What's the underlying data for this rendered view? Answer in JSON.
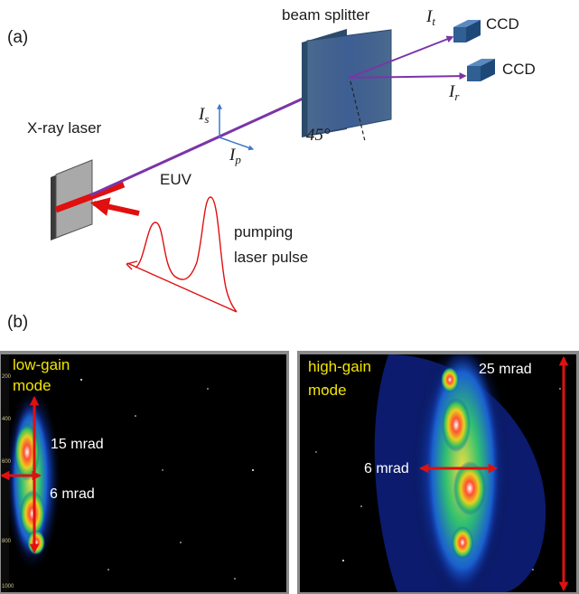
{
  "panel_a": {
    "label": "(a)",
    "beam_splitter": "beam splitter",
    "ccd_transmitted": "CCD",
    "ccd_reflected": "CCD",
    "intensity_t": "I",
    "intensity_t_sub": "t",
    "intensity_r": "I",
    "intensity_r_sub": "r",
    "intensity_s": "I",
    "intensity_s_sub": "s",
    "intensity_p": "I",
    "intensity_p_sub": "p",
    "angle": "45°",
    "xray_laser": "X-ray laser",
    "euv": "EUV",
    "pumping_line1": "pumping",
    "pumping_line2": "laser pulse"
  },
  "panel_b": {
    "label": "(b)",
    "left": {
      "mode_line1": "low-gain",
      "mode_line2": "mode",
      "vertical_divergence": "15 mrad",
      "horizontal_divergence": "6 mrad",
      "axis_ticks": [
        "200",
        "400",
        "600",
        "800",
        "1000"
      ]
    },
    "right": {
      "mode_line1": "high-gain",
      "mode_line2": "mode",
      "vertical_divergence": "25 mrad",
      "horizontal_divergence": "6 mrad"
    }
  },
  "colors": {
    "beam": "#7a35a8",
    "red_marker": "#e01010",
    "polarization_axis": "#3c78c8",
    "splitter_face": "#4a6a90",
    "ccd_face": "#2f5f93",
    "mode_text": "#f2e400",
    "image_background": "#000000"
  }
}
